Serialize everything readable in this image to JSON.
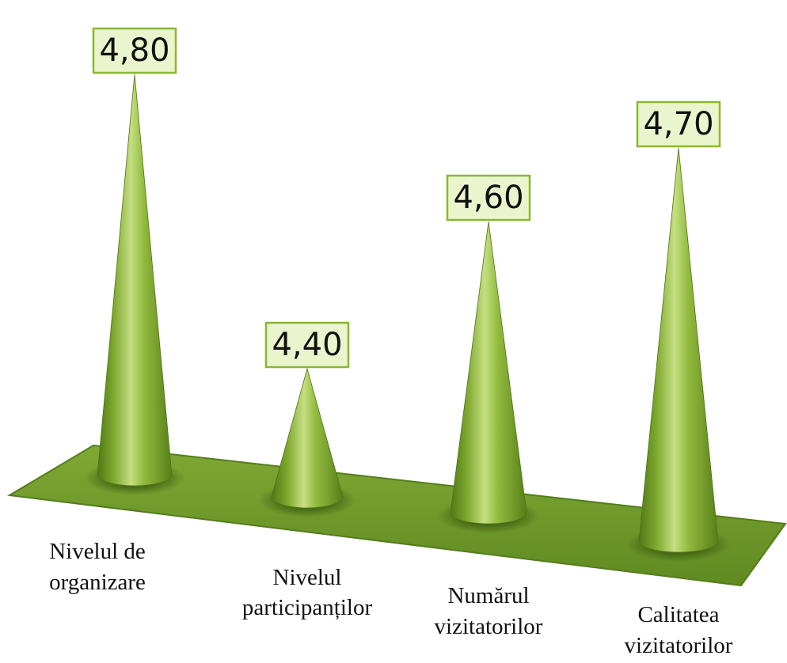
{
  "chart_data": {
    "type": "bar",
    "categories": [
      [
        "Nivelul de",
        "organizare"
      ],
      [
        "Nivelul",
        "participanților"
      ],
      [
        "Numărul",
        "vizitatorilor"
      ],
      [
        "Calitatea",
        "vizitatorilor"
      ]
    ],
    "values": [
      4.8,
      4.4,
      4.6,
      4.7
    ],
    "data_labels": [
      "4,80",
      "4,40",
      "4,60",
      "4,70"
    ],
    "ylim": [
      4.2,
      4.8
    ],
    "grid": false,
    "legend": "none",
    "colors": {
      "cone_dark": "#5f8a1c",
      "cone_mid": "#8fb83a",
      "cone_light": "#c2dd7c",
      "floor": "#6f9a2a",
      "floor_edge": "#4f7418",
      "label_fill": "#eaf5cd",
      "label_border": "#8ab733"
    }
  }
}
